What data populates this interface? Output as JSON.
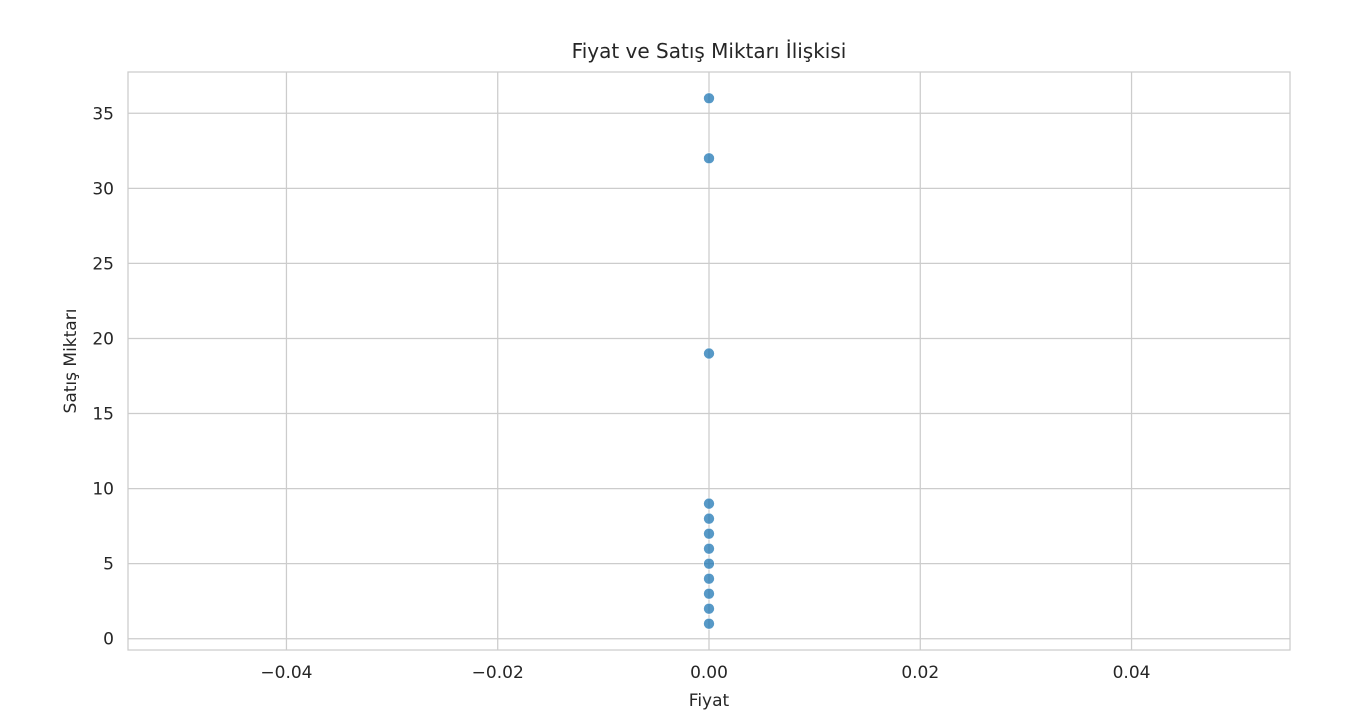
{
  "chart_data": {
    "type": "scatter",
    "title": "Fiyat ve Satış Miktarı İlişkisi",
    "xlabel": "Fiyat",
    "ylabel": "Satış Miktarı",
    "xlim": [
      -0.055,
      0.055
    ],
    "ylim": [
      -0.75,
      37.75
    ],
    "xticks": [
      -0.04,
      -0.02,
      0.0,
      0.02,
      0.04
    ],
    "xtick_labels": [
      "−0.04",
      "−0.02",
      "0.00",
      "0.02",
      "0.04"
    ],
    "yticks": [
      0,
      5,
      10,
      15,
      20,
      25,
      30,
      35
    ],
    "ytick_labels": [
      "0",
      "5",
      "10",
      "15",
      "20",
      "25",
      "30",
      "35"
    ],
    "grid": true,
    "legend": false,
    "marker_color": "#1f77b4",
    "points": [
      {
        "x": 0.0,
        "y": 36
      },
      {
        "x": 0.0,
        "y": 32
      },
      {
        "x": 0.0,
        "y": 19
      },
      {
        "x": 0.0,
        "y": 9
      },
      {
        "x": 0.0,
        "y": 8
      },
      {
        "x": 0.0,
        "y": 7
      },
      {
        "x": 0.0,
        "y": 6
      },
      {
        "x": 0.0,
        "y": 5
      },
      {
        "x": 0.0,
        "y": 4
      },
      {
        "x": 0.0,
        "y": 3
      },
      {
        "x": 0.0,
        "y": 2
      },
      {
        "x": 0.0,
        "y": 1
      }
    ]
  }
}
